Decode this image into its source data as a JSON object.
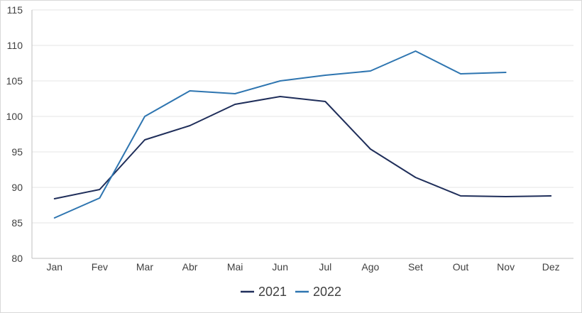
{
  "chart_data": {
    "type": "line",
    "categories": [
      "Jan",
      "Fev",
      "Mar",
      "Abr",
      "Mai",
      "Jun",
      "Jul",
      "Ago",
      "Set",
      "Out",
      "Nov",
      "Dez"
    ],
    "series": [
      {
        "name": "2021",
        "color": "#1f2e5a",
        "values": [
          88.4,
          89.7,
          96.7,
          98.7,
          101.7,
          102.8,
          102.1,
          95.4,
          91.4,
          88.8,
          88.7,
          88.8
        ]
      },
      {
        "name": "2022",
        "color": "#2e75b0",
        "values": [
          85.7,
          88.5,
          100.0,
          103.6,
          103.2,
          105.0,
          105.8,
          106.4,
          109.2,
          106.0,
          106.2,
          null
        ]
      }
    ],
    "y_ticks": [
      "80",
      "85",
      "90",
      "95",
      "100",
      "105",
      "110",
      "115"
    ],
    "ylim": [
      80,
      115
    ],
    "grid": true,
    "legend_position": "bottom",
    "gridline_color": "#e6e6e6",
    "axis_color": "#bfbfbf"
  }
}
